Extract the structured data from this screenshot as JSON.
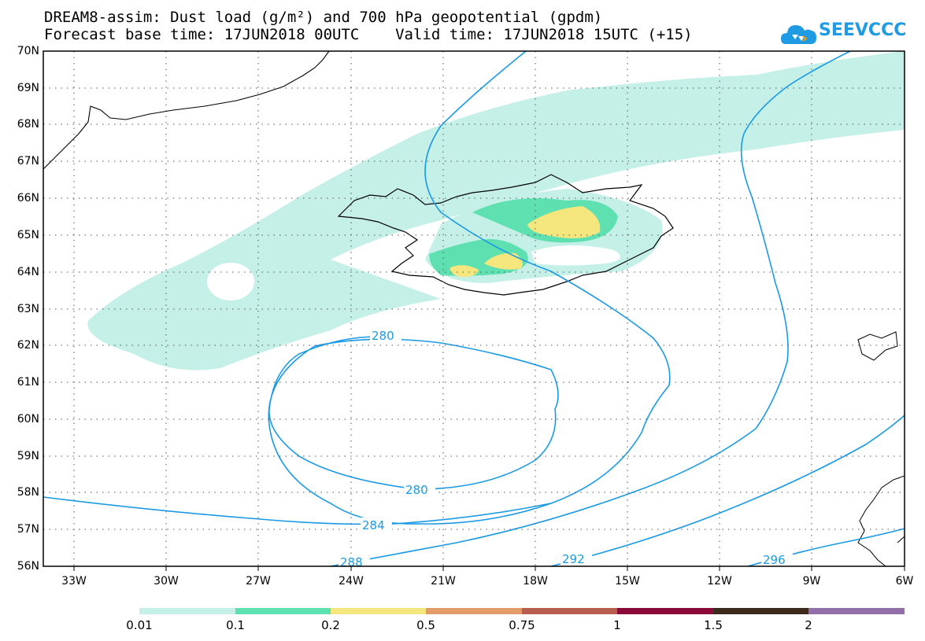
{
  "title": {
    "line1": "DREAM8-assim: Dust load (g/m²) and 700 hPa geopotential (gpdm)",
    "line2": "Forecast base time: 17JUN2018 00UTC    Valid time: 17JUN2018 15UTC (+15)"
  },
  "logo": {
    "text": "SEEVCCC",
    "icon": "cloud-icon",
    "color": "#1e9be3"
  },
  "map": {
    "lat_labels": [
      "70N",
      "69N",
      "68N",
      "67N",
      "66N",
      "65N",
      "64N",
      "63N",
      "62N",
      "61N",
      "60N",
      "59N",
      "58N",
      "57N",
      "56N"
    ],
    "lon_labels": [
      "33W",
      "30W",
      "27W",
      "24W",
      "21W",
      "18W",
      "15W",
      "12W",
      "9W",
      "6W"
    ],
    "contour_labels": [
      "280",
      "280",
      "284",
      "288",
      "292",
      "296"
    ],
    "contour_color": "#1a9ae6",
    "coast_color": "#000000"
  },
  "colorbar": {
    "colors": [
      "#c4f0e8",
      "#5ee0b0",
      "#f5e67d",
      "#e39b6a",
      "#b85e4e",
      "#8a0a3a",
      "#3e2a1a",
      "#936fa8"
    ],
    "labels": [
      "0.01",
      "0.1",
      "0.2",
      "0.5",
      "0.75",
      "1",
      "1.5",
      "2"
    ]
  }
}
